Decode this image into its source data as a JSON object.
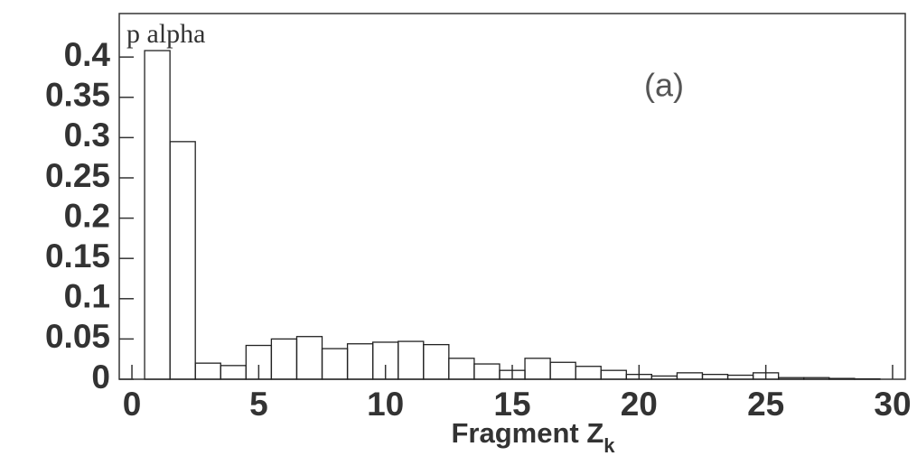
{
  "chart_data": {
    "type": "histogram",
    "annotations": [
      "p alpha",
      "(a)"
    ],
    "x_label": "Fragment Z",
    "x_label_subscript": "k",
    "bins": [
      0.5,
      1.5,
      2.5,
      3.5,
      4.5,
      5.5,
      6.5,
      7.5,
      8.5,
      9.5,
      10.5,
      11.5,
      12.5,
      13.5,
      14.5,
      15.5,
      16.5,
      17.5,
      18.5,
      19.5,
      20.5,
      21.5,
      22.5,
      23.5,
      24.5,
      25.5,
      26.5,
      27.5,
      28.5,
      29.5
    ],
    "counts": [
      0.408,
      0.295,
      0.02,
      0.017,
      0.042,
      0.05,
      0.053,
      0.038,
      0.044,
      0.046,
      0.047,
      0.043,
      0.026,
      0.019,
      0.011,
      0.026,
      0.021,
      0.016,
      0.011,
      0.006,
      0.004,
      0.008,
      0.006,
      0.005,
      0.008,
      0.002,
      0.002,
      0.001,
      0.0005
    ],
    "color": "#222222",
    "xlim": [
      -0.5,
      30.5
    ],
    "ylim": [
      0,
      0.454
    ],
    "xticks": [
      0,
      5,
      10,
      15,
      20,
      25,
      30
    ],
    "yticks": [
      0,
      0.05,
      0.1,
      0.15,
      0.2,
      0.25,
      0.3,
      0.35,
      0.4
    ]
  }
}
